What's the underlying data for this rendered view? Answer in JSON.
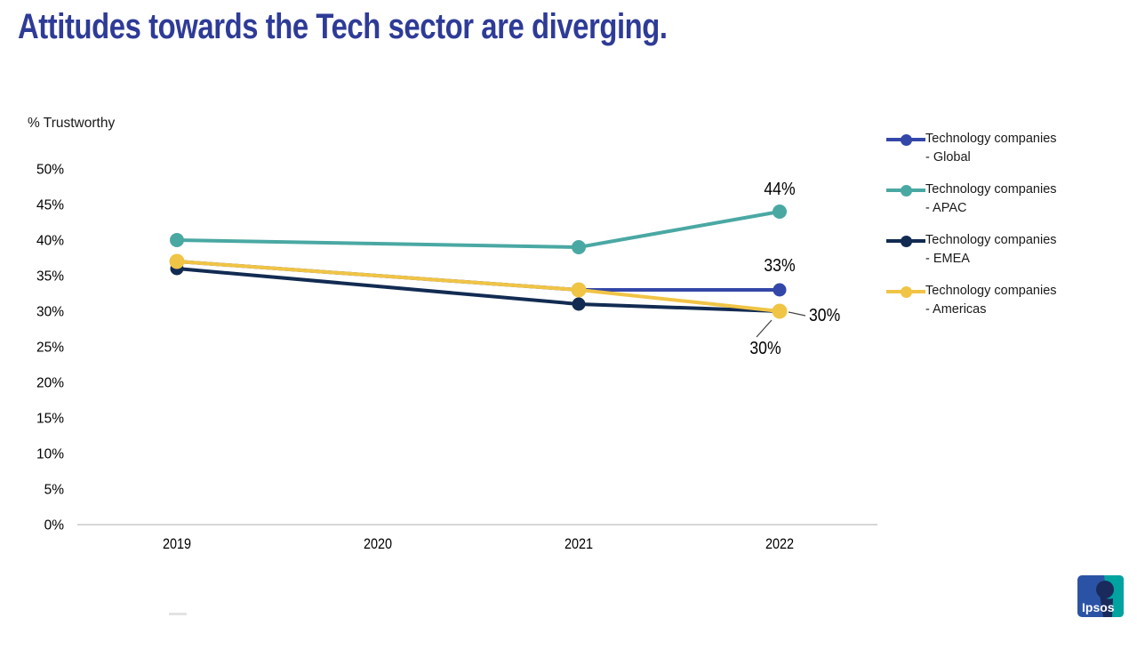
{
  "page": {
    "title": "Attitudes towards the Tech sector are diverging."
  },
  "colors": {
    "title": "#2E3B97",
    "axis_line": "#BFBFBF",
    "text": "#000000",
    "leader_line": "#404040"
  },
  "chart_data": {
    "type": "line",
    "title": "Attitudes towards the Tech sector are diverging.",
    "ylabel": "% Trustworthy",
    "xlabel": "",
    "x_ticks": [
      2019,
      2020,
      2021,
      2022
    ],
    "y_ticks": [
      0,
      5,
      10,
      15,
      20,
      25,
      30,
      35,
      40,
      45,
      50
    ],
    "y_unit": "%",
    "ylim": [
      0,
      50
    ],
    "grid": false,
    "legend_position": "right",
    "series": [
      {
        "name": "Technology companies - Global",
        "color": "#3347A8",
        "x": [
          2019,
          2021,
          2022
        ],
        "values": [
          37,
          33,
          33
        ]
      },
      {
        "name": "Technology companies - APAC",
        "color": "#4AA8A3",
        "x": [
          2019,
          2021,
          2022
        ],
        "values": [
          40,
          39,
          44
        ]
      },
      {
        "name": "Technology companies - EMEA",
        "color": "#122B52",
        "x": [
          2019,
          2021,
          2022
        ],
        "values": [
          36,
          31,
          30
        ]
      },
      {
        "name": "Technology companies - Americas",
        "color": "#F0C445",
        "x": [
          2019,
          2021,
          2022
        ],
        "values": [
          37,
          33,
          30
        ]
      }
    ],
    "annotations": [
      {
        "series": "Technology companies - APAC",
        "x": 2022,
        "value": 44,
        "label": "44%"
      },
      {
        "series": "Technology companies - Global",
        "x": 2022,
        "value": 33,
        "label": "33%"
      },
      {
        "series": "Technology companies - Americas",
        "x": 2022,
        "value": 30,
        "label": "30%"
      },
      {
        "series": "Technology companies - EMEA",
        "x": 2022,
        "value": 30,
        "label": "30%"
      }
    ]
  },
  "logo": {
    "label": "Ipsos",
    "blue": "#2B53A5",
    "teal": "#00A3A0",
    "silhouette": "#1A2A5C"
  }
}
